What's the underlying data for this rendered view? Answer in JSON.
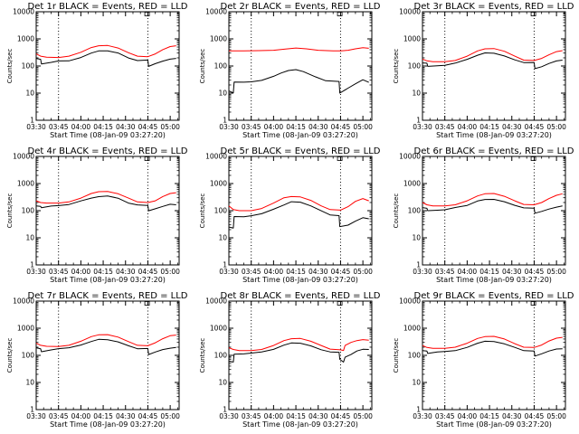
{
  "colors": {
    "events": "#000000",
    "lld": "#ff0000",
    "axis": "#000000",
    "background": "#ffffff"
  },
  "chart_data": [
    {
      "type": "line",
      "title": "Det 1r BLACK = Events, RED = LLD",
      "xlabel": "Start Time (08-Jan-09 03:27:20)",
      "ylabel": "Counts/sec",
      "xlim": [
        "03:30",
        "05:06"
      ],
      "ylim": [
        1,
        10000
      ],
      "yscale": "log",
      "xticks": [
        "03:30",
        "03:45",
        "04:00",
        "04:15",
        "04:30",
        "04:45",
        "05:00"
      ],
      "yticks": [
        "1",
        "10",
        "100",
        "1000",
        "10000"
      ],
      "vlines": [
        "03:45",
        "04:45"
      ],
      "series": [
        {
          "x": [
            "03:30",
            "03:33",
            "03:33.5",
            "03:40",
            "03:45",
            "03:52",
            "04:00",
            "04:07",
            "04:12",
            "04:18",
            "04:25",
            "04:32",
            "04:38",
            "04:45",
            "04:45.5",
            "04:50",
            "04:55",
            "05:00",
            "05:04"
          ],
          "values": [
            190,
            180,
            120,
            135,
            150,
            160,
            210,
            300,
            360,
            360,
            290,
            200,
            160,
            165,
            100,
            120,
            150,
            175,
            190
          ]
        },
        {
          "x": [
            "03:30",
            "03:33",
            "03:37",
            "03:45",
            "03:52",
            "04:00",
            "04:07",
            "04:12",
            "04:18",
            "04:25",
            "04:32",
            "04:38",
            "04:45",
            "04:50",
            "04:55",
            "05:00",
            "05:04"
          ],
          "values": [
            280,
            230,
            210,
            205,
            230,
            320,
            480,
            560,
            570,
            460,
            310,
            230,
            220,
            280,
            400,
            520,
            560
          ]
        }
      ]
    },
    {
      "type": "line",
      "title": "Det 2r BLACK = Events, RED = LLD",
      "xlabel": "Start Time (08-Jan-09 03:27:20)",
      "ylabel": "Counts/sec",
      "xlim": [
        "03:30",
        "05:06"
      ],
      "ylim": [
        1,
        10000
      ],
      "yscale": "log",
      "xticks": [
        "03:30",
        "03:45",
        "04:00",
        "04:15",
        "04:30",
        "04:45",
        "05:00"
      ],
      "yticks": [
        "1",
        "10",
        "100",
        "1000",
        "10000"
      ],
      "vlines": [
        "03:45",
        "04:45"
      ],
      "series": [
        {
          "x": [
            "03:30",
            "03:33",
            "03:33.5",
            "03:40",
            "03:45",
            "03:52",
            "04:00",
            "04:05",
            "04:10",
            "04:15",
            "04:20",
            "04:28",
            "04:35",
            "04:44",
            "04:44.5",
            "04:50",
            "04:55",
            "05:00",
            "05:04"
          ],
          "values": [
            12,
            10,
            25,
            26,
            27,
            30,
            40,
            55,
            70,
            75,
            60,
            40,
            30,
            28,
            10,
            15,
            22,
            30,
            25
          ]
        },
        {
          "x": [
            "03:30",
            "03:40",
            "03:50",
            "04:00",
            "04:08",
            "04:15",
            "04:22",
            "04:30",
            "04:40",
            "04:45",
            "04:50",
            "04:55",
            "05:00",
            "05:04"
          ],
          "values": [
            360,
            360,
            370,
            380,
            420,
            460,
            430,
            380,
            360,
            360,
            380,
            430,
            470,
            450
          ]
        }
      ]
    },
    {
      "type": "line",
      "title": "Det 3r BLACK = Events, RED = LLD",
      "xlabel": "Start Time (08-Jan-09 03:27:20)",
      "ylabel": "Counts/sec",
      "xlim": [
        "03:30",
        "05:06"
      ],
      "ylim": [
        1,
        10000
      ],
      "yscale": "log",
      "xticks": [
        "03:30",
        "03:45",
        "04:00",
        "04:15",
        "04:30",
        "04:45",
        "05:00"
      ],
      "yticks": [
        "1",
        "10",
        "100",
        "1000",
        "10000"
      ],
      "vlines": [
        "03:45",
        "04:45"
      ],
      "series": [
        {
          "x": [
            "03:30",
            "03:33",
            "03:33.5",
            "03:40",
            "03:45",
            "03:52",
            "04:00",
            "04:07",
            "04:12",
            "04:18",
            "04:25",
            "04:32",
            "04:38",
            "04:45",
            "04:45.5",
            "04:50",
            "04:55",
            "05:00",
            "05:04"
          ],
          "values": [
            130,
            125,
            95,
            105,
            110,
            125,
            170,
            250,
            300,
            300,
            240,
            170,
            135,
            130,
            80,
            95,
            120,
            150,
            165
          ]
        },
        {
          "x": [
            "03:30",
            "03:33",
            "03:37",
            "03:45",
            "03:52",
            "04:00",
            "04:07",
            "04:12",
            "04:18",
            "04:25",
            "04:32",
            "04:38",
            "04:45",
            "04:50",
            "04:55",
            "05:00",
            "05:04"
          ],
          "values": [
            180,
            155,
            145,
            145,
            160,
            230,
            360,
            430,
            440,
            350,
            230,
            165,
            160,
            190,
            260,
            340,
            370
          ]
        }
      ]
    },
    {
      "type": "line",
      "title": "Det 4r BLACK = Events, RED = LLD",
      "xlabel": "Start Time (08-Jan-09 03:27:20)",
      "ylabel": "Counts/sec",
      "xlim": [
        "03:30",
        "05:06"
      ],
      "ylim": [
        1,
        10000
      ],
      "yscale": "log",
      "xticks": [
        "03:30",
        "03:45",
        "04:00",
        "04:15",
        "04:30",
        "04:45",
        "05:00"
      ],
      "yticks": [
        "1",
        "10",
        "100",
        "1000",
        "10000"
      ],
      "vlines": [
        "03:45",
        "04:45"
      ],
      "series": [
        {
          "x": [
            "03:30",
            "03:33",
            "03:33.5",
            "03:40",
            "03:45",
            "03:52",
            "04:00",
            "04:07",
            "04:12",
            "04:18",
            "04:25",
            "04:32",
            "04:38",
            "04:45",
            "04:45.5",
            "04:50",
            "04:55",
            "05:00",
            "05:04"
          ],
          "values": [
            150,
            145,
            130,
            150,
            160,
            175,
            220,
            300,
            340,
            340,
            280,
            200,
            165,
            160,
            100,
            120,
            145,
            170,
            165
          ]
        },
        {
          "x": [
            "03:30",
            "03:33",
            "03:37",
            "03:45",
            "03:52",
            "04:00",
            "04:07",
            "04:12",
            "04:18",
            "04:25",
            "04:32",
            "04:38",
            "04:45",
            "04:50",
            "04:55",
            "05:00",
            "05:04"
          ],
          "values": [
            230,
            200,
            190,
            190,
            210,
            290,
            430,
            500,
            510,
            420,
            290,
            210,
            200,
            230,
            330,
            430,
            460
          ]
        }
      ]
    },
    {
      "type": "line",
      "title": "Det 5r BLACK = Events, RED = LLD",
      "xlabel": "Start Time (08-Jan-09 03:27:20)",
      "ylabel": "Counts/sec",
      "xlim": [
        "03:30",
        "05:06"
      ],
      "ylim": [
        1,
        10000
      ],
      "yscale": "log",
      "xticks": [
        "03:30",
        "03:45",
        "04:00",
        "04:15",
        "04:30",
        "04:45",
        "05:00"
      ],
      "yticks": [
        "1",
        "10",
        "100",
        "1000",
        "10000"
      ],
      "vlines": [
        "03:45",
        "04:45"
      ],
      "series": [
        {
          "x": [
            "03:30",
            "03:33",
            "03:33.5",
            "03:40",
            "03:45",
            "03:52",
            "04:00",
            "04:07",
            "04:12",
            "04:18",
            "04:25",
            "04:32",
            "04:38",
            "04:44",
            "04:44.5",
            "04:50",
            "04:55",
            "05:00",
            "05:04"
          ],
          "values": [
            25,
            22,
            60,
            62,
            65,
            75,
            110,
            170,
            210,
            200,
            150,
            95,
            70,
            65,
            25,
            30,
            40,
            55,
            50
          ]
        },
        {
          "x": [
            "03:30",
            "03:33",
            "03:37",
            "03:45",
            "03:52",
            "04:00",
            "04:07",
            "04:12",
            "04:18",
            "04:25",
            "04:32",
            "04:38",
            "04:45",
            "04:50",
            "04:55",
            "05:00",
            "05:04"
          ],
          "values": [
            150,
            110,
            100,
            100,
            120,
            190,
            300,
            330,
            320,
            240,
            150,
            110,
            105,
            140,
            220,
            280,
            230
          ]
        }
      ]
    },
    {
      "type": "line",
      "title": "Det 6r BLACK = Events, RED = LLD",
      "xlabel": "Start Time (08-Jan-09 03:27:20)",
      "ylabel": "Counts/sec",
      "xlim": [
        "03:30",
        "05:06"
      ],
      "ylim": [
        1,
        10000
      ],
      "yscale": "log",
      "xticks": [
        "03:30",
        "03:45",
        "04:00",
        "04:15",
        "04:30",
        "04:45",
        "05:00"
      ],
      "yticks": [
        "1",
        "10",
        "100",
        "1000",
        "10000"
      ],
      "vlines": [
        "03:45",
        "04:45"
      ],
      "series": [
        {
          "x": [
            "03:30",
            "03:33",
            "03:33.5",
            "03:40",
            "03:45",
            "03:52",
            "04:00",
            "04:07",
            "04:12",
            "04:18",
            "04:25",
            "04:32",
            "04:38",
            "04:45",
            "04:45.5",
            "04:50",
            "04:55",
            "05:00",
            "05:04"
          ],
          "values": [
            130,
            125,
            100,
            105,
            110,
            125,
            160,
            230,
            270,
            270,
            220,
            160,
            130,
            125,
            80,
            95,
            115,
            140,
            150
          ]
        },
        {
          "x": [
            "03:30",
            "03:33",
            "03:37",
            "03:45",
            "03:52",
            "04:00",
            "04:07",
            "04:12",
            "04:18",
            "04:25",
            "04:32",
            "04:38",
            "04:45",
            "04:50",
            "04:55",
            "05:00",
            "05:04"
          ],
          "values": [
            200,
            165,
            150,
            150,
            165,
            230,
            350,
            420,
            430,
            340,
            230,
            170,
            165,
            200,
            280,
            370,
            420
          ]
        }
      ]
    },
    {
      "type": "line",
      "title": "Det 7r BLACK = Events, RED = LLD",
      "xlabel": "Start Time (08-Jan-09 03:27:20)",
      "ylabel": "Counts/sec",
      "xlim": [
        "03:30",
        "05:06"
      ],
      "ylim": [
        1,
        10000
      ],
      "yscale": "log",
      "xticks": [
        "03:30",
        "03:45",
        "04:00",
        "04:15",
        "04:30",
        "04:45",
        "05:00"
      ],
      "yticks": [
        "1",
        "10",
        "100",
        "1000",
        "10000"
      ],
      "vlines": [
        "03:45",
        "04:45"
      ],
      "series": [
        {
          "x": [
            "03:30",
            "03:33",
            "03:33.5",
            "03:40",
            "03:45",
            "03:52",
            "04:00",
            "04:07",
            "04:12",
            "04:18",
            "04:25",
            "04:32",
            "04:38",
            "04:45",
            "04:45.5",
            "04:50",
            "04:55",
            "05:00",
            "05:04"
          ],
          "values": [
            190,
            180,
            140,
            160,
            175,
            190,
            240,
            330,
            380,
            380,
            310,
            220,
            180,
            180,
            110,
            130,
            160,
            185,
            195
          ]
        },
        {
          "x": [
            "03:30",
            "03:33",
            "03:37",
            "03:45",
            "03:52",
            "04:00",
            "04:07",
            "04:12",
            "04:18",
            "04:25",
            "04:32",
            "04:38",
            "04:45",
            "04:50",
            "04:55",
            "05:00",
            "05:04"
          ],
          "values": [
            280,
            235,
            215,
            210,
            235,
            330,
            490,
            570,
            580,
            470,
            320,
            235,
            225,
            290,
            410,
            530,
            560
          ]
        }
      ]
    },
    {
      "type": "line",
      "title": "Det 8r BLACK = Events, RED = LLD",
      "xlabel": "Start Time (08-Jan-09 03:27:20)",
      "ylabel": "Counts/sec",
      "xlim": [
        "03:30",
        "05:06"
      ],
      "ylim": [
        1,
        10000
      ],
      "yscale": "log",
      "xticks": [
        "03:30",
        "03:45",
        "04:00",
        "04:15",
        "04:30",
        "04:45",
        "05:00"
      ],
      "yticks": [
        "1",
        "10",
        "100",
        "1000",
        "10000"
      ],
      "vlines": [
        "03:45",
        "04:45"
      ],
      "series": [
        {
          "x": [
            "03:30",
            "03:33",
            "03:33.5",
            "03:40",
            "03:45",
            "03:52",
            "04:00",
            "04:07",
            "04:12",
            "04:18",
            "04:25",
            "04:32",
            "04:38",
            "04:44",
            "04:44.5",
            "04:47",
            "04:48",
            "04:52",
            "04:56",
            "05:00",
            "05:04"
          ],
          "values": [
            60,
            55,
            110,
            115,
            120,
            130,
            170,
            240,
            280,
            280,
            220,
            160,
            130,
            125,
            70,
            55,
            85,
            110,
            140,
            160,
            165
          ]
        },
        {
          "x": [
            "03:30",
            "03:33",
            "03:37",
            "03:45",
            "03:52",
            "04:00",
            "04:07",
            "04:12",
            "04:18",
            "04:25",
            "04:32",
            "04:38",
            "04:45",
            "04:47",
            "04:48",
            "04:52",
            "04:56",
            "05:00",
            "05:04"
          ],
          "values": [
            190,
            165,
            150,
            150,
            165,
            230,
            350,
            410,
            420,
            330,
            230,
            170,
            160,
            150,
            230,
            300,
            350,
            380,
            360
          ]
        }
      ]
    },
    {
      "type": "line",
      "title": "Det 9r BLACK = Events, RED = LLD",
      "xlabel": "Start Time (08-Jan-09 03:27:20)",
      "ylabel": "Counts/sec",
      "xlim": [
        "03:30",
        "05:06"
      ],
      "ylim": [
        1,
        10000
      ],
      "yscale": "log",
      "xticks": [
        "03:30",
        "03:45",
        "04:00",
        "04:15",
        "04:30",
        "04:45",
        "05:00"
      ],
      "yticks": [
        "1",
        "10",
        "100",
        "1000",
        "10000"
      ],
      "vlines": [
        "03:45",
        "04:45"
      ],
      "series": [
        {
          "x": [
            "03:30",
            "03:33",
            "03:33.5",
            "03:40",
            "03:45",
            "03:52",
            "04:00",
            "04:07",
            "04:12",
            "04:18",
            "04:25",
            "04:32",
            "04:38",
            "04:45",
            "04:45.5",
            "04:50",
            "04:55",
            "05:00",
            "05:04"
          ],
          "values": [
            150,
            140,
            120,
            130,
            140,
            155,
            200,
            280,
            330,
            330,
            270,
            190,
            155,
            150,
            95,
            110,
            140,
            165,
            175
          ]
        },
        {
          "x": [
            "03:30",
            "03:33",
            "03:37",
            "03:45",
            "03:52",
            "04:00",
            "04:07",
            "04:12",
            "04:18",
            "04:25",
            "04:32",
            "04:38",
            "04:45",
            "04:50",
            "04:55",
            "05:00",
            "05:04"
          ],
          "values": [
            230,
            195,
            180,
            180,
            200,
            280,
            420,
            490,
            500,
            400,
            270,
            200,
            195,
            240,
            340,
            430,
            460
          ]
        }
      ]
    }
  ]
}
